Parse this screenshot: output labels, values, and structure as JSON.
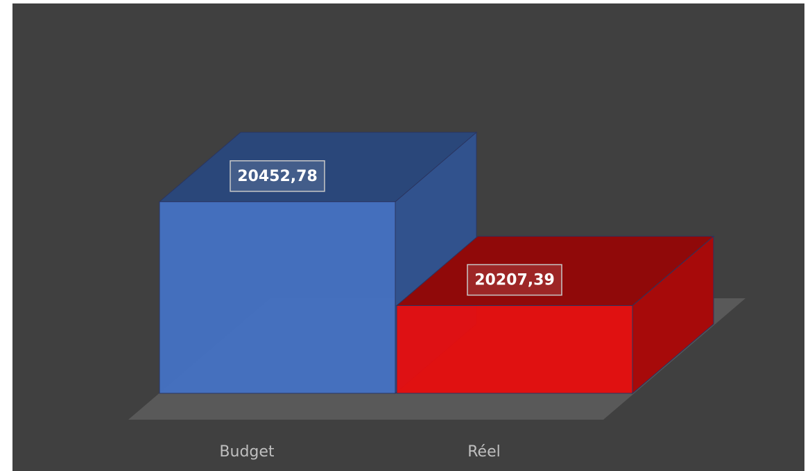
{
  "chart_data": {
    "type": "bar3d",
    "categories": [
      "Budget",
      "Réel"
    ],
    "series": [
      {
        "values": [
          20452.78,
          20207.39
        ],
        "value_labels": [
          "20452,78",
          "20207,39"
        ],
        "colors": [
          "#4472c4",
          "#e80e0e"
        ]
      }
    ],
    "ylim": [
      20000,
      20500
    ]
  }
}
